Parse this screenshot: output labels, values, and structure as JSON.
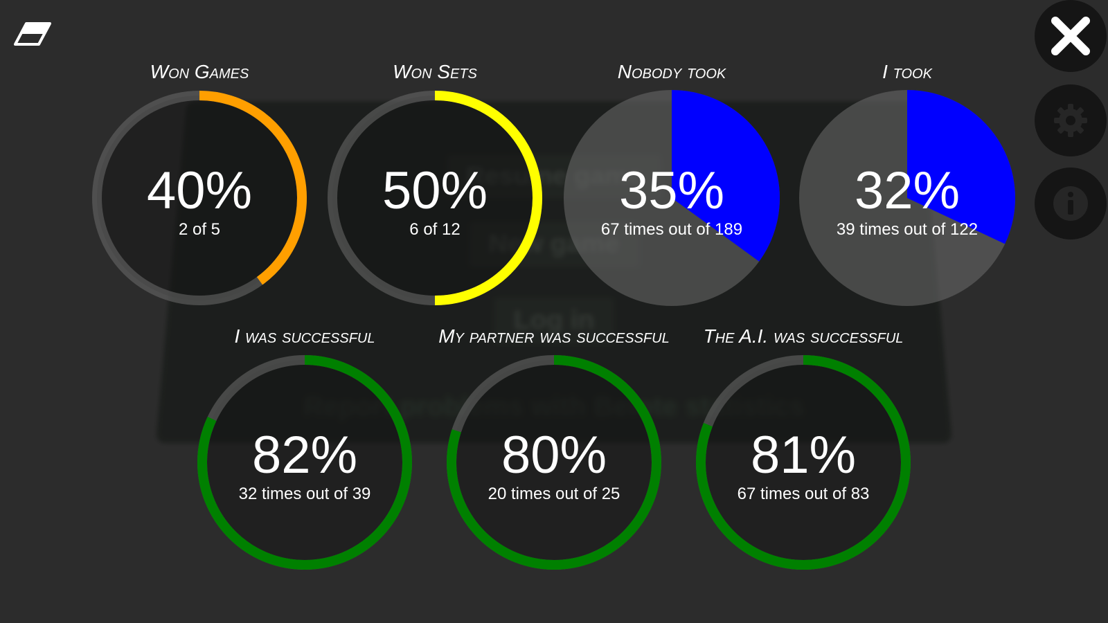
{
  "background_menu": {
    "resume_label": "Resume game",
    "new_label": "New game",
    "login_label": "Log in",
    "footer_text": "Report problems with Belote statistics"
  },
  "toolbar": {
    "reset_icon": "eraser-icon",
    "close_icon": "close-icon",
    "settings_icon": "gear-icon",
    "info_icon": "info-icon"
  },
  "stats": [
    {
      "title": "Won Games",
      "percent": "40%",
      "detail": "2 of 5",
      "fraction": 0.4,
      "style": "ring",
      "color": "#ff9f00"
    },
    {
      "title": "Won Sets",
      "percent": "50%",
      "detail": "6 of 12",
      "fraction": 0.5,
      "style": "ring",
      "color": "#ffff00"
    },
    {
      "title": "Nobody took",
      "percent": "35%",
      "detail": "67 times out of 189",
      "fraction": 0.35,
      "style": "pie",
      "color": "#0000ff"
    },
    {
      "title": "I took",
      "percent": "32%",
      "detail": "39 times out of 122",
      "fraction": 0.32,
      "style": "pie",
      "color": "#0000ff"
    },
    {
      "title": "I was successful",
      "percent": "82%",
      "detail": "32 times out of 39",
      "fraction": 0.82,
      "style": "ring",
      "color": "#008000"
    },
    {
      "title": "My partner was successful",
      "percent": "80%",
      "detail": "20 times out of 25",
      "fraction": 0.8,
      "style": "ring",
      "color": "#008000"
    },
    {
      "title": "The A.I. was successful",
      "percent": "81%",
      "detail": "67 times out of 83",
      "fraction": 0.81,
      "style": "ring",
      "color": "#008000"
    }
  ]
}
